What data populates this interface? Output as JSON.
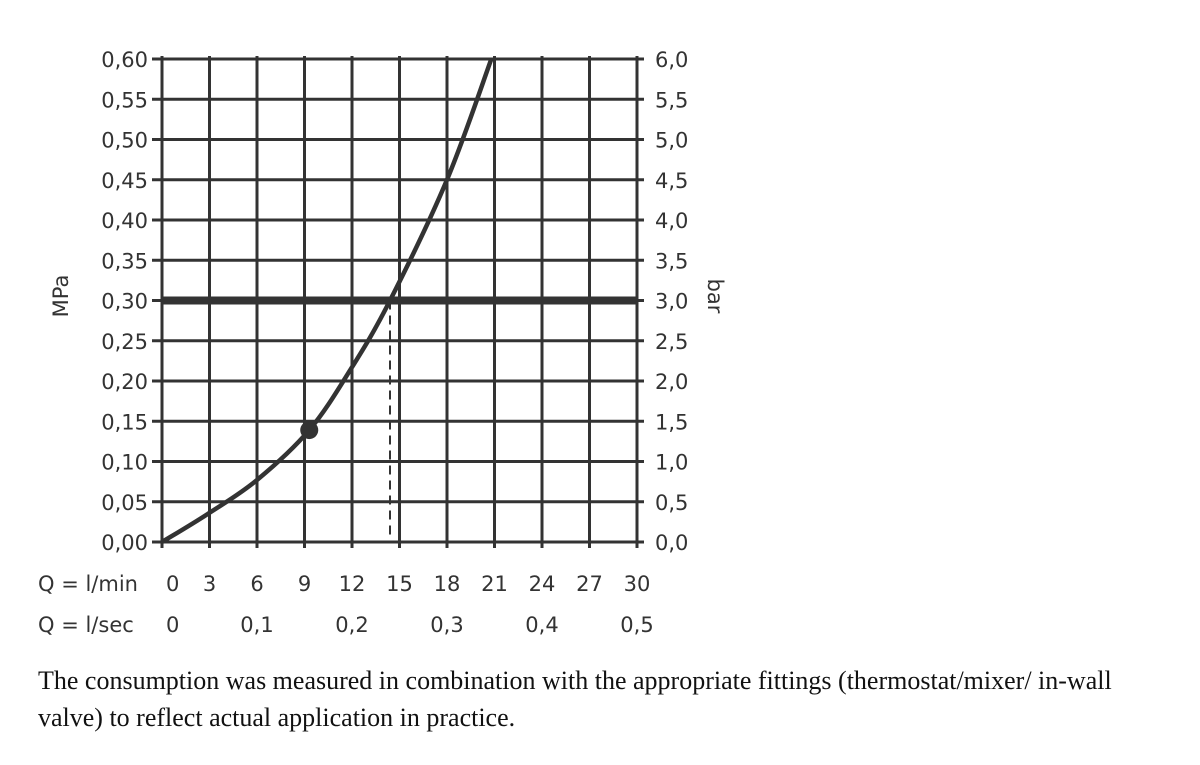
{
  "chart_data": {
    "type": "line",
    "y_left_label": "MPa",
    "y_right_label": "bar",
    "ylim": [
      0,
      0.6
    ],
    "xlim": [
      0,
      30
    ],
    "grid": true,
    "y_left_ticks": [
      "0,00",
      "0,05",
      "0,10",
      "0,15",
      "0,20",
      "0,25",
      "0,30",
      "0,35",
      "0,40",
      "0,45",
      "0,50",
      "0,55",
      "0,60"
    ],
    "y_right_ticks": [
      "0,0",
      "0,5",
      "1,0",
      "1,5",
      "2,0",
      "2,5",
      "3,0",
      "3,5",
      "4,0",
      "4,5",
      "5,0",
      "5,5",
      "6,0"
    ],
    "x_rows": [
      {
        "label": "Q = l/min",
        "ticks": [
          "0",
          "3",
          "6",
          "9",
          "12",
          "15",
          "18",
          "21",
          "24",
          "27",
          "30"
        ],
        "values": [
          0,
          3,
          6,
          9,
          12,
          15,
          18,
          21,
          24,
          27,
          30
        ]
      },
      {
        "label": "Q = l/sec",
        "ticks": [
          "0",
          "0,1",
          "0,2",
          "0,3",
          "0,4",
          "0,5"
        ],
        "values": [
          0,
          6,
          12,
          18,
          24,
          30
        ]
      }
    ],
    "series": [
      {
        "x": [
          0,
          2.9,
          6.0,
          9.3,
          11.9,
          14.4,
          18.0,
          20.8
        ],
        "y": [
          0,
          0.035,
          0.077,
          0.139,
          0.214,
          0.3,
          0.45,
          0.6
        ]
      }
    ],
    "marker_point": {
      "x": 9.3,
      "y": 0.139
    },
    "reference_line_y": 0.3,
    "dashed_drop_x": 14.4,
    "colors": {
      "ink": "#333333"
    }
  },
  "caption": "The consumption was measured in combination with the appropriate fittings (thermostat/mixer/ in-wall valve) to reflect actual application in practice."
}
